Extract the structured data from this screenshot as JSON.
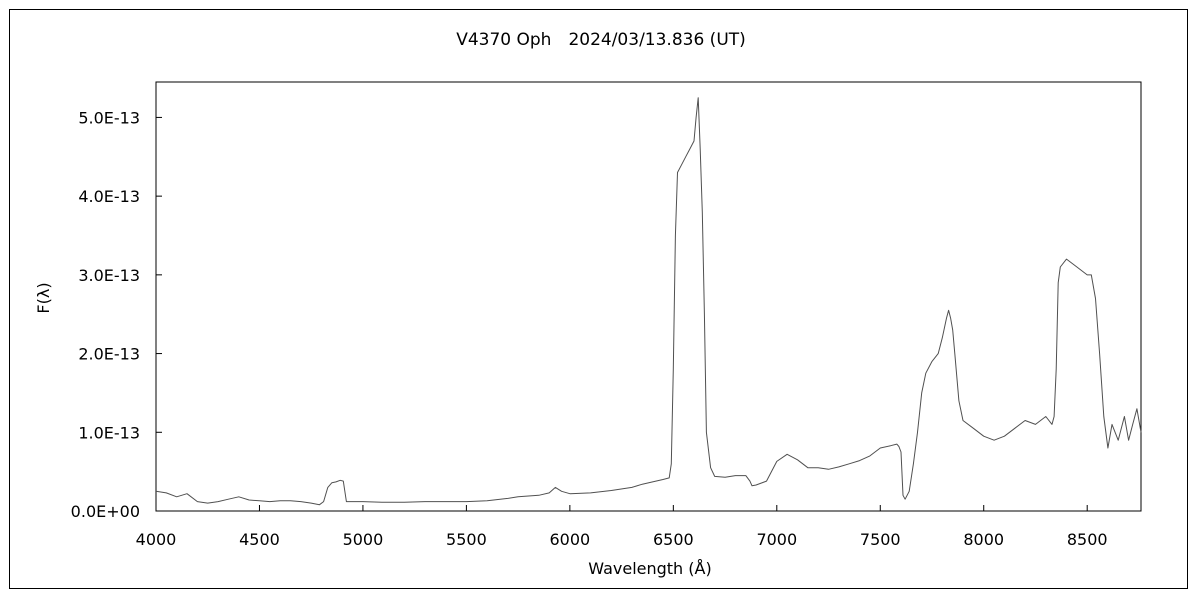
{
  "chart_data": {
    "type": "line",
    "title": "V4370 Oph　2024/03/13.836 (UT)",
    "xlabel": "Wavelength (Å)",
    "ylabel": "F(λ)",
    "xlim": [
      4000,
      8760
    ],
    "ylim": [
      0,
      5.45e-13
    ],
    "x_ticks": [
      4000,
      4500,
      5000,
      5500,
      6000,
      6500,
      7000,
      7500,
      8000,
      8500
    ],
    "x_tick_labels": [
      "4000",
      "4500",
      "5000",
      "5500",
      "6000",
      "6500",
      "7000",
      "7500",
      "8000",
      "8500"
    ],
    "y_ticks": [
      0,
      1e-13,
      2e-13,
      3e-13,
      4e-13,
      5e-13
    ],
    "y_tick_labels": [
      "0.0E+00",
      "1.0E-13",
      "2.0E-13",
      "3.0E-13",
      "4.0E-13",
      "5.0E-13"
    ],
    "grid": false,
    "legend": "none",
    "line_color": "#505050",
    "series": [
      {
        "x": [
          4000,
          4050,
          4100,
          4150,
          4200,
          4250,
          4300,
          4350,
          4400,
          4450,
          4500,
          4550,
          4600,
          4650,
          4700,
          4750,
          4790,
          4810,
          4830,
          4850,
          4870,
          4890,
          4905,
          4920,
          4950,
          5000,
          5100,
          5200,
          5300,
          5400,
          5500,
          5600,
          5700,
          5750,
          5800,
          5850,
          5900,
          5930,
          5960,
          6000,
          6100,
          6200,
          6300,
          6350,
          6400,
          6450,
          6480,
          6490,
          6500,
          6510,
          6520,
          6540,
          6560,
          6580,
          6600,
          6610,
          6620,
          6630,
          6640,
          6650,
          6660,
          6680,
          6700,
          6750,
          6800,
          6850,
          6870,
          6880,
          6900,
          6950,
          7000,
          7050,
          7100,
          7150,
          7200,
          7250,
          7300,
          7350,
          7400,
          7450,
          7500,
          7550,
          7580,
          7590,
          7600,
          7610,
          7620,
          7640,
          7660,
          7680,
          7700,
          7720,
          7750,
          7780,
          7800,
          7820,
          7830,
          7840,
          7850,
          7860,
          7880,
          7900,
          7950,
          8000,
          8050,
          8100,
          8150,
          8200,
          8250,
          8300,
          8330,
          8340,
          8350,
          8360,
          8370,
          8400,
          8450,
          8500,
          8520,
          8540,
          8560,
          8580,
          8600,
          8620,
          8650,
          8680,
          8700,
          8720,
          8740,
          8760
        ],
        "y": [
          2.5e-14,
          2.3e-14,
          1.8e-14,
          2.2e-14,
          1.2e-14,
          1e-14,
          1.2e-14,
          1.5e-14,
          1.8e-14,
          1.4e-14,
          1.3e-14,
          1.2e-14,
          1.3e-14,
          1.3e-14,
          1.2e-14,
          1e-14,
          8e-15,
          1.2e-14,
          3e-14,
          3.6e-14,
          3.7e-14,
          3.9e-14,
          3.8e-14,
          1.2e-14,
          1.2e-14,
          1.2e-14,
          1.1e-14,
          1.1e-14,
          1.2e-14,
          1.2e-14,
          1.2e-14,
          1.3e-14,
          1.6e-14,
          1.8e-14,
          1.9e-14,
          2e-14,
          2.3e-14,
          3e-14,
          2.5e-14,
          2.2e-14,
          2.3e-14,
          2.6e-14,
          3e-14,
          3.4e-14,
          3.7e-14,
          4e-14,
          4.2e-14,
          6e-14,
          1.8e-13,
          3.5e-13,
          4.3e-13,
          4.4e-13,
          4.5e-13,
          4.6e-13,
          4.7e-13,
          5e-13,
          5.25e-13,
          4.6e-13,
          3.8e-13,
          2.5e-13,
          1e-13,
          5.5e-14,
          4.4e-14,
          4.3e-14,
          4.5e-14,
          4.5e-14,
          3.8e-14,
          3.2e-14,
          3.3e-14,
          3.8e-14,
          6.3e-14,
          7.2e-14,
          6.5e-14,
          5.5e-14,
          5.5e-14,
          5.3e-14,
          5.6e-14,
          6e-14,
          6.4e-14,
          7e-14,
          8e-14,
          8.3e-14,
          8.5e-14,
          8.2e-14,
          7.5e-14,
          2e-14,
          1.5e-14,
          2.5e-14,
          6e-14,
          1e-13,
          1.5e-13,
          1.75e-13,
          1.9e-13,
          2e-13,
          2.2e-13,
          2.45e-13,
          2.55e-13,
          2.45e-13,
          2.3e-13,
          2e-13,
          1.4e-13,
          1.15e-13,
          1.05e-13,
          9.5e-14,
          9e-14,
          9.5e-14,
          1.05e-13,
          1.15e-13,
          1.1e-13,
          1.2e-13,
          1.1e-13,
          1.2e-13,
          1.8e-13,
          2.9e-13,
          3.1e-13,
          3.2e-13,
          3.1e-13,
          3e-13,
          3e-13,
          2.7e-13,
          2e-13,
          1.2e-13,
          8e-14,
          1.1e-13,
          9e-14,
          1.2e-13,
          9e-14,
          1.1e-13,
          1.3e-13,
          1e-13
        ]
      }
    ]
  }
}
